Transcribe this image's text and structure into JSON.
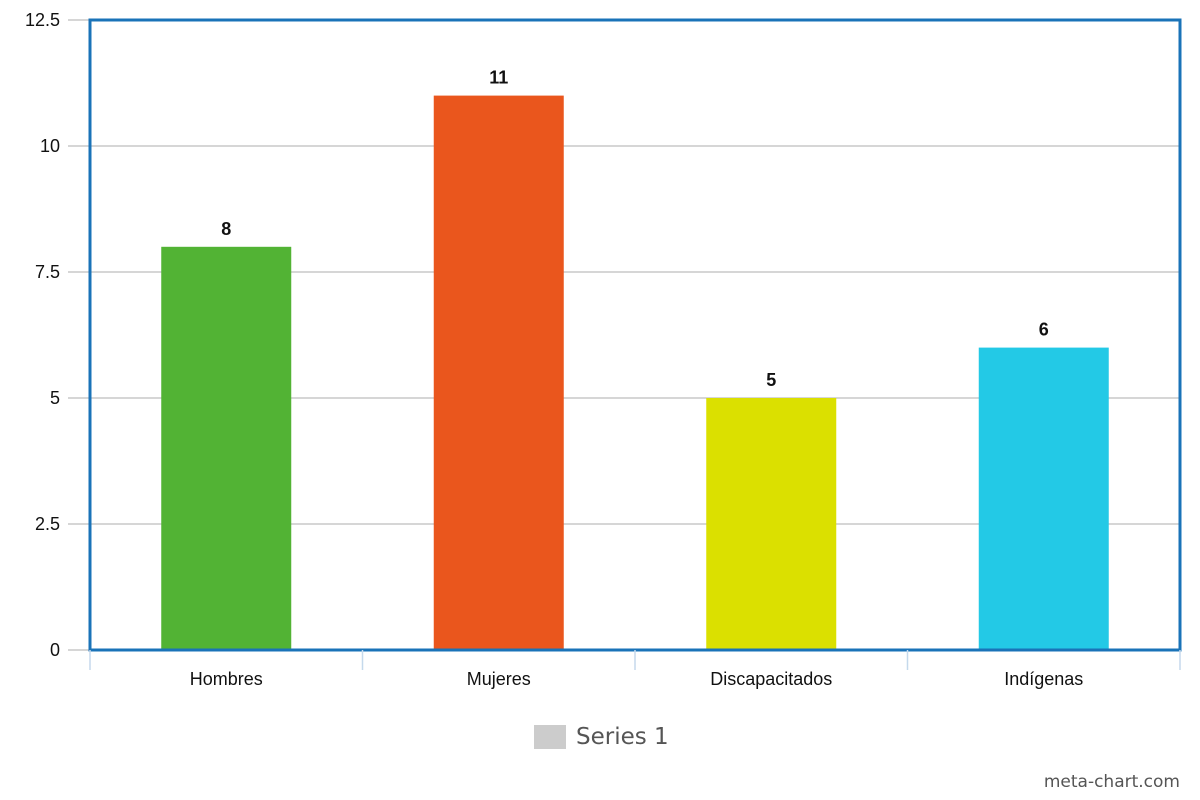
{
  "chart_data": {
    "type": "bar",
    "categories": [
      "Hombres",
      "Mujeres",
      "Discapacitados",
      "Indígenas"
    ],
    "series": [
      {
        "name": "Series 1",
        "values": [
          8,
          11,
          5,
          6
        ]
      }
    ],
    "data_labels": [
      "8",
      "11",
      "5",
      "6"
    ],
    "bar_colors": [
      "#52b334",
      "#ea561d",
      "#dbe000",
      "#23c9e6"
    ],
    "ylim": [
      0,
      12.5
    ],
    "y_ticks": [
      0,
      2.5,
      5,
      7.5,
      10,
      12.5
    ],
    "y_tick_labels": [
      "0",
      "2.5",
      "5",
      "7.5",
      "10",
      "12.5"
    ],
    "grid": true,
    "legend_position": "bottom-center",
    "frame_color": "#1a73b8",
    "grid_color": "#c8c8c8",
    "title": "",
    "xlabel": "",
    "ylabel": ""
  },
  "legend": {
    "label": "Series 1",
    "swatch_color": "#cccccc"
  },
  "watermark": "meta-chart.com"
}
